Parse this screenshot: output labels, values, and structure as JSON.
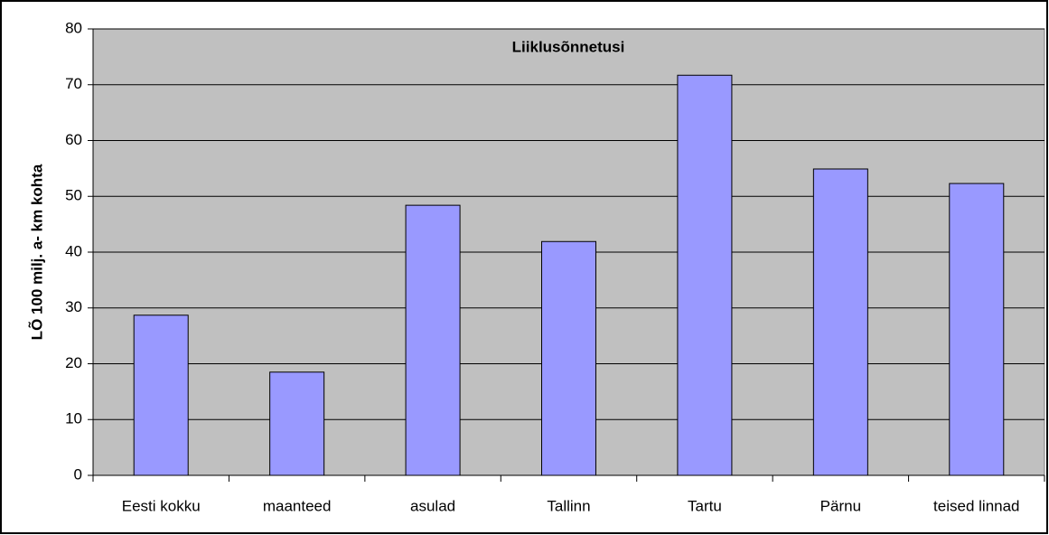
{
  "chart_data": {
    "type": "bar",
    "title": "Liiklusõnnetusi",
    "y_label": "LÕ 100 milj. a- km kohta",
    "categories": [
      "Eesti kokku",
      "maanteed",
      "asulad",
      "Tallinn",
      "Tartu",
      "Pärnu",
      "teised linnad"
    ],
    "values": [
      28.7,
      18.5,
      48.4,
      41.9,
      71.7,
      54.9,
      52.3
    ],
    "color": "#9999ff",
    "ylim": [
      0,
      80
    ],
    "yticks": [
      0,
      10,
      20,
      30,
      40,
      50,
      60,
      70,
      80
    ],
    "grid": true
  }
}
